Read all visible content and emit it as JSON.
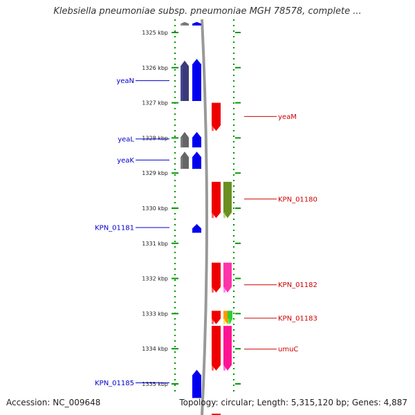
{
  "title": "Klebsiella pneumoniae subsp. pneumoniae MGH 78578, complete ...",
  "footer": {
    "accession": "Accession: NC_009648",
    "topology": "Topology: circular; Length: 5,315,120 bp; Genes: 4,887"
  },
  "colors": {
    "left_label": "#0000cc",
    "right_label": "#cc0000",
    "track_dots": "#009900",
    "backbone": "#999999"
  },
  "axis": {
    "unit": "kbp",
    "ticks": [
      {
        "kbp": 1325,
        "label": "1325 kbp"
      },
      {
        "kbp": 1326,
        "label": "1326 kbp"
      },
      {
        "kbp": 1327,
        "label": "1327 kbp"
      },
      {
        "kbp": 1328,
        "label": "1328 kbp"
      },
      {
        "kbp": 1329,
        "label": "1329 kbp"
      },
      {
        "kbp": 1330,
        "label": "1330 kbp"
      },
      {
        "kbp": 1331,
        "label": "1331 kbp"
      },
      {
        "kbp": 1332,
        "label": "1332 kbp"
      },
      {
        "kbp": 1333,
        "label": "1333 kbp"
      },
      {
        "kbp": 1334,
        "label": "1334 kbp"
      },
      {
        "kbp": 1335,
        "label": "1335 kbp"
      }
    ]
  },
  "left_labels": [
    {
      "text": "yeaN",
      "kbp": 1326.37
    },
    {
      "text": "yeaL",
      "kbp": 1328.03
    },
    {
      "text": "yeaK",
      "kbp": 1328.63
    },
    {
      "text": "KPN_01181",
      "kbp": 1330.55
    },
    {
      "text": "KPN_01185",
      "kbp": 1334.97
    }
  ],
  "right_labels": [
    {
      "text": "yeaM",
      "kbp": 1327.39
    },
    {
      "text": "KPN_01180",
      "kbp": 1329.74
    },
    {
      "text": "KPN_01182",
      "kbp": 1332.18
    },
    {
      "text": "KPN_01183",
      "kbp": 1333.13
    },
    {
      "text": "umuC",
      "kbp": 1334.01
    }
  ],
  "genes": [
    {
      "track": "left_outer",
      "start_kbp": 1324.7,
      "end_kbp": 1324.8,
      "color": "#777777",
      "strand": "+"
    },
    {
      "track": "left_inner",
      "start_kbp": 1324.7,
      "end_kbp": 1324.8,
      "color": "#0000ee",
      "strand": "+"
    },
    {
      "track": "left_outer",
      "start_kbp": 1325.8,
      "end_kbp": 1326.95,
      "color": "#3a3a7a",
      "strand": "+"
    },
    {
      "track": "left_inner",
      "start_kbp": 1325.75,
      "end_kbp": 1326.95,
      "color": "#0000ee",
      "strand": "+"
    },
    {
      "track": "right_inner",
      "start_kbp": 1327.0,
      "end_kbp": 1327.8,
      "color": "#ee0000",
      "strand": "-"
    },
    {
      "track": "left_outer",
      "start_kbp": 1327.83,
      "end_kbp": 1328.27,
      "color": "#666666",
      "strand": "+"
    },
    {
      "track": "left_inner",
      "start_kbp": 1327.83,
      "end_kbp": 1328.27,
      "color": "#0000ee",
      "strand": "+"
    },
    {
      "track": "left_outer",
      "start_kbp": 1328.39,
      "end_kbp": 1328.88,
      "color": "#666666",
      "strand": "+"
    },
    {
      "track": "left_inner",
      "start_kbp": 1328.39,
      "end_kbp": 1328.88,
      "color": "#0000ee",
      "strand": "+"
    },
    {
      "track": "right_inner",
      "start_kbp": 1329.25,
      "end_kbp": 1330.28,
      "color": "#ee0000",
      "strand": "-"
    },
    {
      "track": "right_outer",
      "start_kbp": 1329.25,
      "end_kbp": 1330.28,
      "color": "#6b8e23",
      "strand": "-"
    },
    {
      "track": "left_inner",
      "start_kbp": 1330.45,
      "end_kbp": 1330.7,
      "color": "#0000ee",
      "strand": "+"
    },
    {
      "track": "right_inner",
      "start_kbp": 1331.55,
      "end_kbp": 1332.4,
      "color": "#ee0000",
      "strand": "-"
    },
    {
      "track": "right_outer",
      "start_kbp": 1331.55,
      "end_kbp": 1332.4,
      "color": "#ff33aa",
      "strand": "-"
    },
    {
      "track": "right_inner",
      "start_kbp": 1332.92,
      "end_kbp": 1333.3,
      "color": "#ee0000",
      "strand": "-"
    },
    {
      "track": "right_outer",
      "start_kbp": 1332.92,
      "end_kbp": 1333.3,
      "color": "#ff9900",
      "strand": "-"
    },
    {
      "track": "right_outer2",
      "start_kbp": 1332.92,
      "end_kbp": 1333.3,
      "color": "#33cc33",
      "strand": "-"
    },
    {
      "track": "right_inner",
      "start_kbp": 1333.35,
      "end_kbp": 1334.62,
      "color": "#ee0000",
      "strand": "-"
    },
    {
      "track": "right_outer",
      "start_kbp": 1333.35,
      "end_kbp": 1334.62,
      "color": "#ff1493",
      "strand": "-"
    },
    {
      "track": "left_inner",
      "start_kbp": 1334.6,
      "end_kbp": 1335.4,
      "color": "#0000ee",
      "strand": "+"
    },
    {
      "track": "right_inner",
      "start_kbp": 1335.85,
      "end_kbp": 1336.0,
      "color": "#ee0000",
      "strand": "-"
    }
  ]
}
